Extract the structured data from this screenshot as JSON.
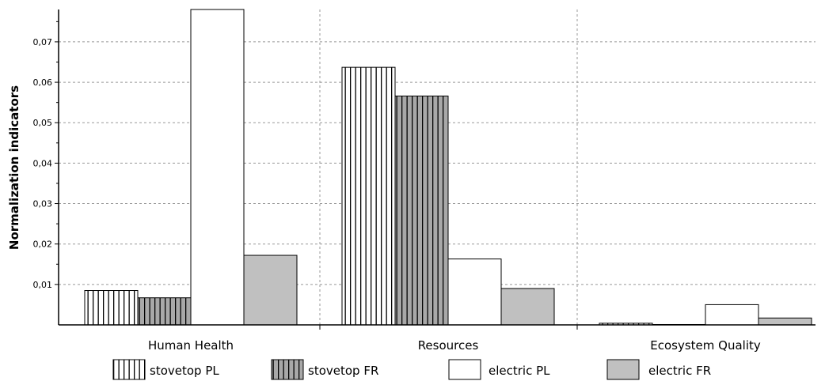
{
  "chart_data": {
    "type": "bar",
    "ylabel": "Normalization indicators",
    "xlabel": "",
    "categories": [
      "Human Health",
      "Resources",
      "Ecosystem Quality"
    ],
    "series": [
      {
        "name": "stovetop PL",
        "values": [
          0.0085,
          0.0637,
          0.0004
        ],
        "pattern": "vertical-stripes",
        "color": "#ffffff"
      },
      {
        "name": "stovetop FR",
        "values": [
          0.0067,
          0.0566,
          0.0001
        ],
        "pattern": "vertical-stripes",
        "color": "#a8a8a8"
      },
      {
        "name": "electric PL",
        "values": [
          0.078,
          0.0163,
          0.005
        ],
        "pattern": "solid",
        "color": "#ffffff"
      },
      {
        "name": "electric FR",
        "values": [
          0.0172,
          0.009,
          0.0017
        ],
        "pattern": "solid",
        "color": "#c0c0c0"
      }
    ],
    "ylim": [
      0,
      0.078
    ],
    "yticks": [
      0.01,
      0.02,
      0.03,
      0.04,
      0.05,
      0.06,
      0.07
    ],
    "ytick_labels": [
      "0,01",
      "0,02",
      "0,03",
      "0,04",
      "0,05",
      "0,06",
      "0,07"
    ],
    "grid": true,
    "legend_position": "bottom"
  }
}
